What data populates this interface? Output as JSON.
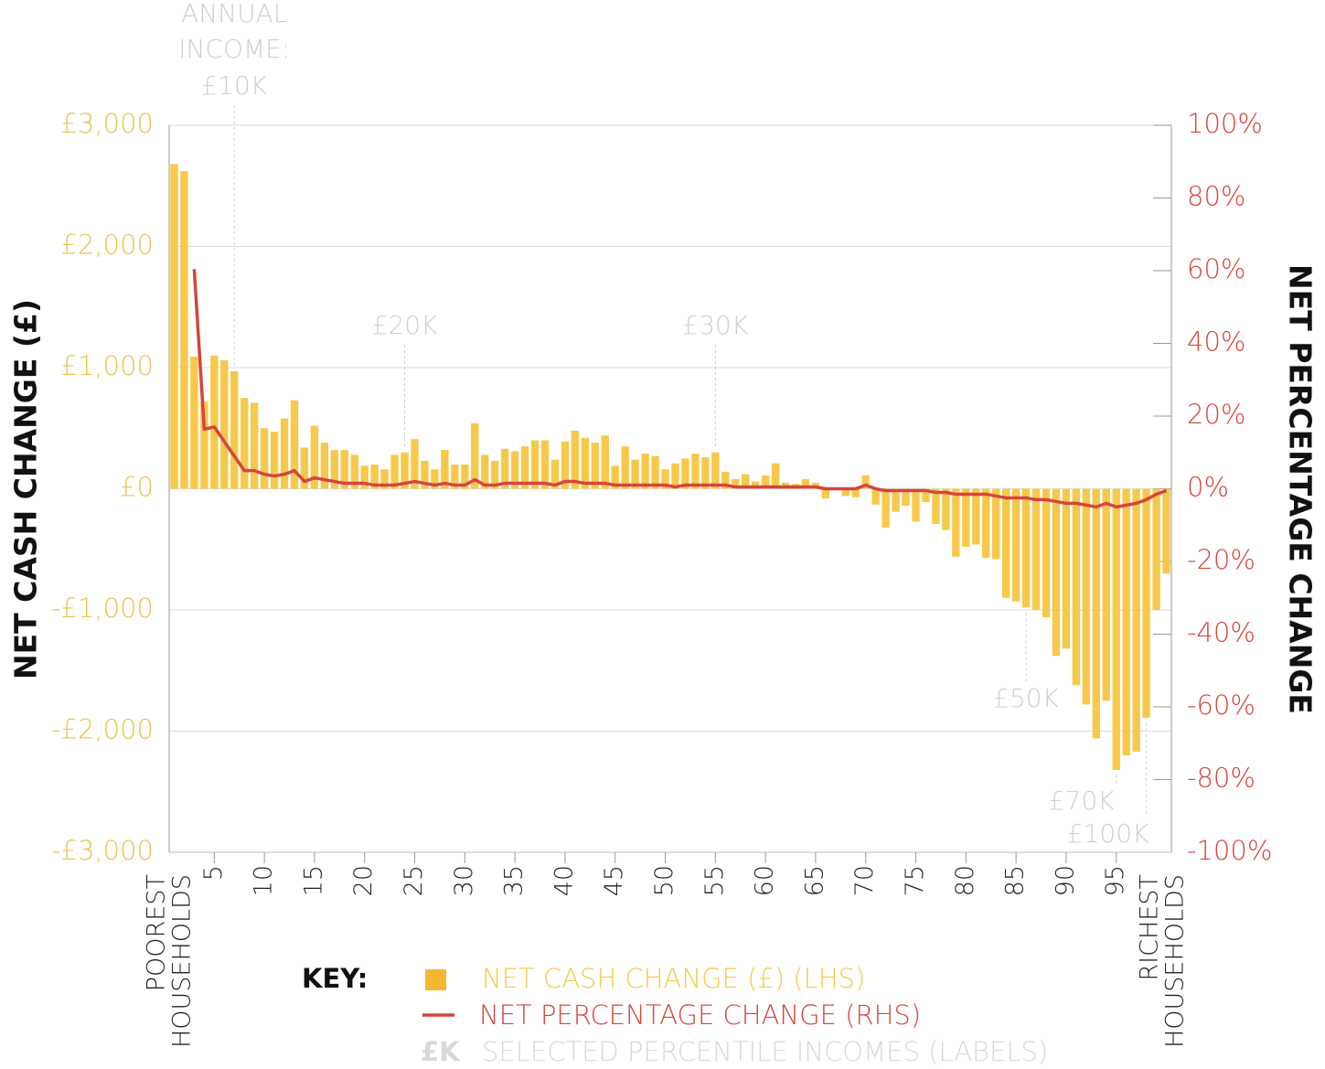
{
  "chart_data": {
    "type": "bar_line",
    "ylabel": "NET CASH CHANGE (£)",
    "y2label": "NET PERCENTAGE CHANGE",
    "x_end_labels": [
      [
        "POOREST",
        "HOUSEHOLDS"
      ],
      [
        "RICHEST",
        "HOUSEHOLDS"
      ]
    ],
    "categories": [
      null,
      null,
      null,
      null,
      5,
      null,
      null,
      null,
      null,
      10,
      null,
      null,
      null,
      null,
      15,
      null,
      null,
      null,
      null,
      20,
      null,
      null,
      null,
      null,
      25,
      null,
      null,
      null,
      null,
      30,
      null,
      null,
      null,
      null,
      35,
      null,
      null,
      null,
      null,
      40,
      null,
      null,
      null,
      null,
      45,
      null,
      null,
      null,
      null,
      50,
      null,
      null,
      null,
      null,
      55,
      null,
      null,
      null,
      null,
      60,
      null,
      null,
      null,
      null,
      65,
      null,
      null,
      null,
      null,
      70,
      null,
      null,
      null,
      null,
      75,
      null,
      null,
      null,
      null,
      80,
      null,
      null,
      null,
      null,
      85,
      null,
      null,
      null,
      null,
      90,
      null,
      null,
      null,
      null,
      95,
      null,
      null,
      null,
      null,
      null
    ],
    "series": [
      {
        "name": "NET CASH CHANGE (£) (LHS)",
        "type": "bar",
        "axis": "y",
        "color": "#f7c84a",
        "values": [
          2680,
          2620,
          1090,
          720,
          1100,
          1060,
          970,
          750,
          710,
          500,
          470,
          580,
          730,
          340,
          520,
          380,
          320,
          320,
          280,
          190,
          200,
          160,
          280,
          300,
          410,
          230,
          160,
          320,
          200,
          200,
          540,
          280,
          230,
          330,
          310,
          350,
          400,
          400,
          240,
          390,
          480,
          420,
          380,
          440,
          190,
          350,
          240,
          290,
          270,
          160,
          210,
          250,
          290,
          260,
          300,
          140,
          80,
          120,
          60,
          110,
          210,
          50,
          40,
          80,
          50,
          -80,
          10,
          -60,
          -70,
          110,
          -130,
          -320,
          -190,
          -140,
          -270,
          -110,
          -290,
          -340,
          -560,
          -480,
          -460,
          -570,
          -580,
          -900,
          -930,
          -980,
          -1000,
          -1060,
          -1380,
          -1320,
          -1620,
          -1780,
          -2060,
          -1750,
          -2320,
          -2200,
          -2170,
          -1890,
          -1000,
          -700
        ]
      },
      {
        "name": "NET PERCENTAGE CHANGE (RHS)",
        "type": "line",
        "axis": "y2",
        "color": "#d6453d",
        "values": [
          null,
          null,
          60.4,
          16.4,
          17,
          13,
          9,
          5,
          5,
          4,
          3.5,
          4,
          5,
          2,
          3,
          2.5,
          2,
          1.5,
          1.5,
          1.5,
          1,
          1,
          1,
          1.5,
          2,
          1.5,
          1,
          1.5,
          1,
          1,
          2.5,
          1,
          1,
          1.5,
          1.5,
          1.5,
          1.5,
          1.5,
          1,
          2,
          2,
          1.5,
          1.5,
          1.5,
          1,
          1,
          1,
          1,
          1,
          1,
          0.5,
          1,
          1,
          1,
          1,
          1,
          0.5,
          0.5,
          0.5,
          0.5,
          0.5,
          0.5,
          0.5,
          0.5,
          0.5,
          0,
          0,
          0,
          0,
          1,
          0,
          -0.5,
          -0.5,
          -0.5,
          -0.5,
          -0.5,
          -1,
          -1,
          -1.5,
          -1.5,
          -1.5,
          -1.5,
          -2,
          -2.5,
          -2.5,
          -2.5,
          -3,
          -3,
          -3.5,
          -4,
          -4,
          -4.5,
          -5,
          -4,
          -5,
          -4.5,
          -4,
          -3,
          -1.5,
          -0.5
        ]
      }
    ],
    "ylim": [
      -3000,
      3000
    ],
    "yticks": [
      {
        "value": 3000,
        "label": "£3,000"
      },
      {
        "value": 2000,
        "label": "£2,000"
      },
      {
        "value": 1000,
        "label": "£1,000"
      },
      {
        "value": 0,
        "label": "£0"
      },
      {
        "value": -1000,
        "label": "-£1,000"
      },
      {
        "value": -2000,
        "label": "-£2,000"
      },
      {
        "value": -3000,
        "label": "-£3,000"
      }
    ],
    "y2lim": [
      -100,
      100
    ],
    "y2ticks": [
      {
        "value": 100,
        "label": "100%"
      },
      {
        "value": 80,
        "label": "80%"
      },
      {
        "value": 60,
        "label": "60%"
      },
      {
        "value": 40,
        "label": "40%"
      },
      {
        "value": 20,
        "label": "20%"
      },
      {
        "value": 0,
        "label": "0%"
      },
      {
        "value": -20,
        "label": "-20%"
      },
      {
        "value": -40,
        "label": "-40%"
      },
      {
        "value": -60,
        "label": "-60%"
      },
      {
        "value": -80,
        "label": "-80%"
      },
      {
        "value": -100,
        "label": "-100%"
      }
    ],
    "grid": true,
    "annual_income_label": [
      "ANNUAL",
      "INCOME:"
    ],
    "annotations": [
      {
        "label": "£10K",
        "percentile": 7
      },
      {
        "label": "£20K",
        "percentile": 24
      },
      {
        "label": "£30K",
        "percentile": 55
      },
      {
        "label": "£50K",
        "percentile": 86
      },
      {
        "label": "£70K",
        "percentile": 95
      },
      {
        "label": "£100K",
        "percentile": 98
      }
    ],
    "key": {
      "title": "KEY:",
      "marker_text": "£K",
      "marker_desc": "SELECTED PERCENTILE INCOMES (LABELS)"
    }
  }
}
